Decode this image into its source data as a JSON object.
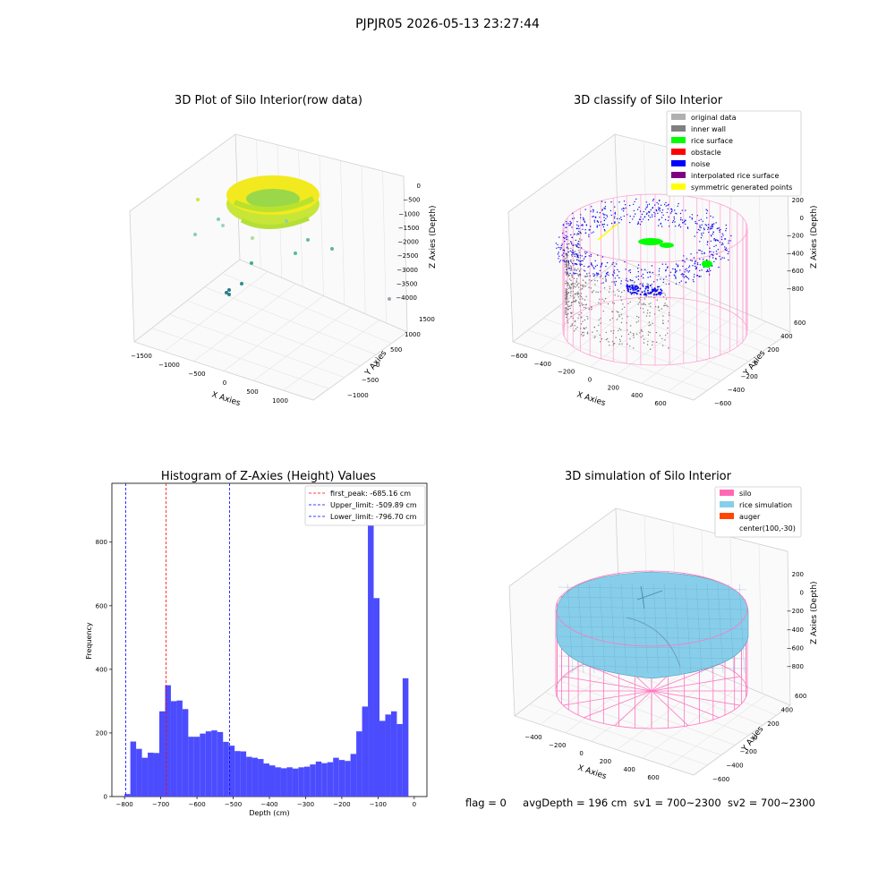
{
  "figure_title": "PJPJR05 2026-05-13 23:27:44",
  "footer": {
    "flag": "flag = 0",
    "avg_depth": "avgDepth = 196 cm",
    "sv1": "sv1 = 700~2300",
    "sv2": "sv2 = 700~2300"
  },
  "colors": {
    "histogram_bar": "#4c4cff",
    "first_peak_line": "#ff0000",
    "limit_line": "#0000ff",
    "silo_wire": "#ff69b4",
    "rice_surface": "#87ceeb",
    "auger": "#ff4500",
    "legend_original": "#b0b0b0",
    "legend_inner_wall": "#808080",
    "legend_rice_surface": "#00ff00",
    "legend_obstacle": "#ff0000",
    "legend_noise": "#0000ff",
    "legend_interpolated": "#800080",
    "legend_symmetric": "#ffff00"
  },
  "chart_data": [
    {
      "type": "scatter",
      "title": "3D Plot of Silo Interior(row data)",
      "xlabel": "X Axies",
      "ylabel": "Y Axies",
      "zlabel": "Z Axies (Depth)",
      "x_ticks": [
        "−1500",
        "−1000",
        "−500",
        "0",
        "500",
        "1000"
      ],
      "y_ticks": [
        "−1000",
        "−500",
        "0",
        "500",
        "1000",
        "1500"
      ],
      "z_ticks": [
        "0",
        "−500",
        "−1000",
        "−1500",
        "−2000",
        "−2500",
        "−3000",
        "−3500",
        "−4000"
      ],
      "xlim": [
        -1700,
        1300
      ],
      "ylim": [
        -1300,
        1700
      ],
      "zlim": [
        -4300,
        200
      ]
    },
    {
      "type": "scatter",
      "title": "3D classify of Silo Interior",
      "xlabel": "X Axies",
      "ylabel": "Y Axies",
      "zlabel": "Z Axies (Depth)",
      "x_ticks": [
        "−600",
        "−400",
        "−200",
        "0",
        "200",
        "400",
        "600"
      ],
      "y_ticks": [
        "−600",
        "−400",
        "−200",
        "0",
        "200",
        "400",
        "600"
      ],
      "z_ticks": [
        "200",
        "0",
        "−200",
        "−400",
        "−600",
        "−800"
      ],
      "legend": [
        "original data",
        "inner wall",
        "rice surface",
        "obstacle",
        "noise",
        "interpolated rice surface",
        "symmetric generated points"
      ],
      "legend_position": "top-right",
      "xlim": [
        -650,
        700
      ],
      "ylim": [
        -650,
        700
      ],
      "zlim": [
        -950,
        300
      ]
    },
    {
      "type": "bar",
      "title": "Histogram of Z-Axies (Height) Values",
      "xlabel": "Depth (cm)",
      "ylabel": "Frequency",
      "xlim": [
        -835,
        35
      ],
      "ylim": [
        0,
        985
      ],
      "x_ticks": [
        -800,
        -700,
        -600,
        -500,
        -400,
        -300,
        -200,
        -100,
        0
      ],
      "x_tick_labels": [
        "−800",
        "−700",
        "−600",
        "−500",
        "−400",
        "−300",
        "−200",
        "−100",
        "0"
      ],
      "y_ticks": [
        0,
        200,
        400,
        600,
        800
      ],
      "y_tick_labels": [
        "0",
        "200",
        "400",
        "600",
        "800"
      ],
      "bin_start": -800,
      "bin_width": 16,
      "values": [
        8,
        173,
        150,
        122,
        138,
        137,
        268,
        350,
        300,
        302,
        275,
        188,
        188,
        198,
        205,
        208,
        203,
        172,
        160,
        143,
        142,
        125,
        122,
        118,
        104,
        98,
        92,
        89,
        92,
        88,
        92,
        94,
        101,
        110,
        105,
        108,
        122,
        115,
        112,
        134,
        205,
        283,
        942,
        624,
        238,
        258,
        268,
        228,
        372
      ],
      "vlines": [
        {
          "label": "first_peak: -685.16 cm",
          "x": -685.16,
          "kind": "peak"
        },
        {
          "label": "Upper_limit: -509.89 cm",
          "x": -509.89,
          "kind": "limit"
        },
        {
          "label": "Lower_limit: -796.70 cm",
          "x": -796.7,
          "kind": "limit"
        }
      ],
      "legend_position": "top-right"
    },
    {
      "type": "surface",
      "title": "3D simulation of Silo Interior",
      "xlabel": "X Axies",
      "ylabel": "Y Axies",
      "zlabel": "Z Axies (Depth)",
      "x_ticks": [
        "−400",
        "−200",
        "0",
        "200",
        "400",
        "600"
      ],
      "y_ticks": [
        "−600",
        "−400",
        "−200",
        "0",
        "200",
        "400",
        "600"
      ],
      "z_ticks": [
        "200",
        "0",
        "−200",
        "−400",
        "−600",
        "−800"
      ],
      "legend": [
        "silo",
        "rice simulation",
        "auger",
        "center(100,-30)"
      ],
      "legend_position": "top-right",
      "xlim": [
        -550,
        700
      ],
      "ylim": [
        -650,
        700
      ],
      "zlim": [
        -950,
        350
      ]
    }
  ]
}
